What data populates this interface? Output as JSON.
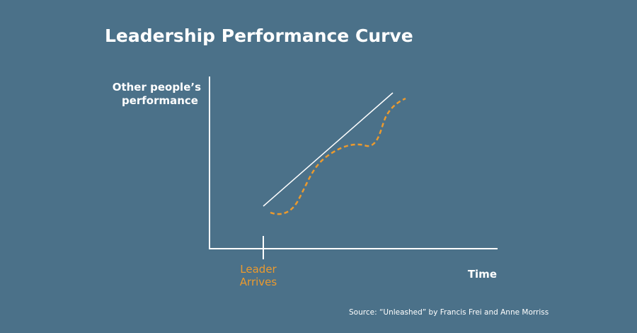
{
  "title": "Leadership Performance Curve",
  "y_axis_label": [
    "Other people’s",
    "performance"
  ],
  "x_axis_label": "Time",
  "marker_label": [
    "Leader",
    "Arrives"
  ],
  "source": "Source: “Unleashed” by Francis Frei and Anne Morriss"
}
